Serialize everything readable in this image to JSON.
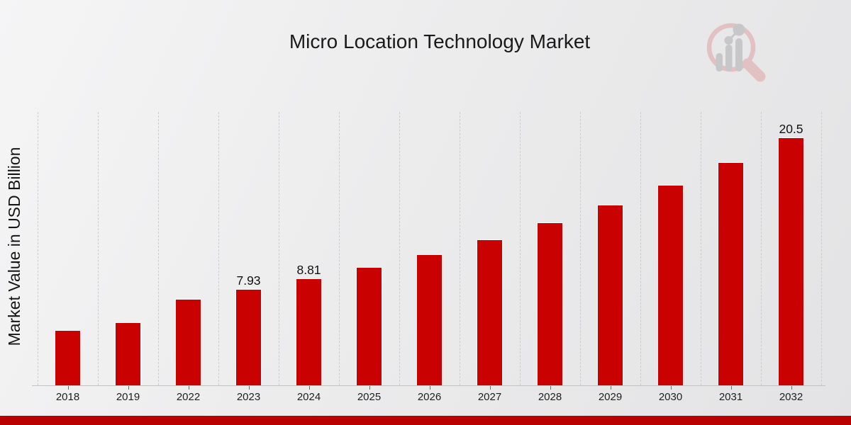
{
  "chart_data": {
    "type": "bar",
    "title": "Micro Location Technology Market",
    "ylabel": "Market Value in USD Billion",
    "xlabel": "",
    "categories": [
      "2018",
      "2019",
      "2022",
      "2023",
      "2024",
      "2025",
      "2026",
      "2027",
      "2028",
      "2029",
      "2030",
      "2031",
      "2032"
    ],
    "values": [
      4.5,
      5.15,
      7.1,
      7.93,
      8.81,
      9.78,
      10.85,
      12.07,
      13.48,
      14.94,
      16.58,
      18.46,
      20.5
    ],
    "data_labels": {
      "2023": "7.93",
      "2024": "8.81",
      "2032": "20.5"
    },
    "ylim": [
      0,
      22.7
    ],
    "grid": "vertical-dashed",
    "legend": "none"
  },
  "colors": {
    "bar": "#c90101",
    "banner": "#b80100",
    "background": "#ededee",
    "gridline": "#cbcbcd",
    "axis": "#c2c2c4",
    "text": "#1a1a1a"
  },
  "logo": {
    "name": "magnifier-bar-chart-watermark",
    "ring_color": "#e2c1c2",
    "bars_color": "#c7c7c9"
  }
}
